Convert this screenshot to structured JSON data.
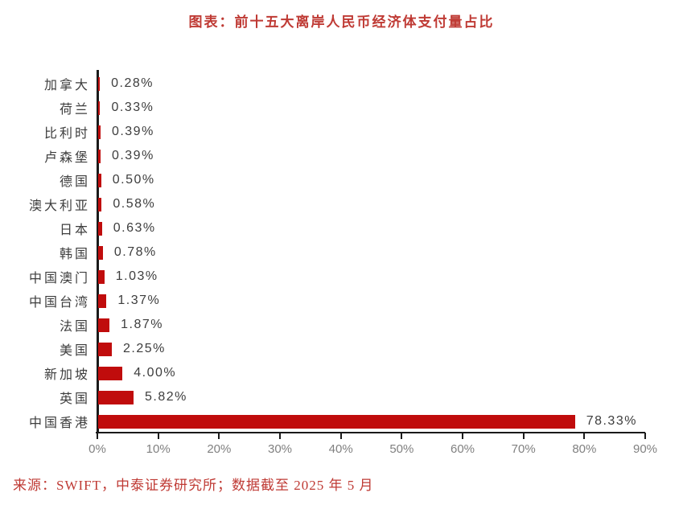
{
  "title": "图表：前十五大离岸人民币经济体支付量占比",
  "source_note": "来源：SWIFT，中泰证券研究所；数据截至 2025 年 5 月",
  "colors": {
    "bar": "#c00c0c",
    "accent_red": "#bf3a34",
    "label_dark": "#3d3d3d",
    "tick_gray": "#808080",
    "axis": "#1a1a1a"
  },
  "chart_data": {
    "type": "bar",
    "orientation": "horizontal",
    "title": "图表：前十五大离岸人民币经济体支付量占比",
    "categories": [
      "加拿大",
      "荷兰",
      "比利时",
      "卢森堡",
      "德国",
      "澳大利亚",
      "日本",
      "韩国",
      "中国澳门",
      "中国台湾",
      "法国",
      "美国",
      "新加坡",
      "英国",
      "中国香港"
    ],
    "values": [
      0.28,
      0.33,
      0.39,
      0.39,
      0.5,
      0.58,
      0.63,
      0.78,
      1.03,
      1.37,
      1.87,
      2.25,
      4.0,
      5.82,
      78.33
    ],
    "value_labels": [
      "0.28%",
      "0.33%",
      "0.39%",
      "0.39%",
      "0.50%",
      "0.58%",
      "0.63%",
      "0.78%",
      "1.03%",
      "1.37%",
      "1.87%",
      "2.25%",
      "4.00%",
      "5.82%",
      "78.33%"
    ],
    "xlabel": "",
    "ylabel": "",
    "xlim": [
      0,
      90
    ],
    "x_ticks": [
      "0%",
      "10%",
      "20%",
      "30%",
      "40%",
      "50%",
      "60%",
      "70%",
      "80%",
      "90%"
    ],
    "grid": false,
    "legend": false
  }
}
